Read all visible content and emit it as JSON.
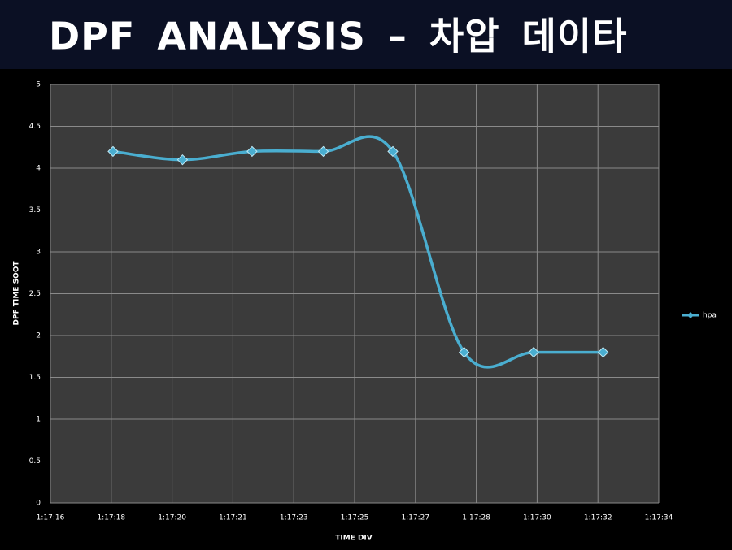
{
  "chart_data": {
    "type": "line",
    "title": "DPF ANALYSIS – 차압 데이타",
    "x_label": "TIME DIV",
    "y_label": "DPF TIME SOOT",
    "x": [
      17.8,
      19.8,
      21.8,
      23.85,
      25.85,
      27.9,
      29.9,
      31.9
    ],
    "series": [
      {
        "name": "hpa",
        "color": "#4aaed0",
        "values": [
          4.2,
          4.1,
          4.2,
          4.2,
          4.2,
          1.8,
          1.8,
          1.8
        ]
      }
    ],
    "xlim": [
      16,
      33.5
    ],
    "xticks": [
      {
        "value": 16,
        "label": "1:17:16"
      },
      {
        "value": 17.75,
        "label": "1:17:18"
      },
      {
        "value": 19.5,
        "label": "1:17:20"
      },
      {
        "value": 21.25,
        "label": "1:17:21"
      },
      {
        "value": 23,
        "label": "1:17:23"
      },
      {
        "value": 24.75,
        "label": "1:17:25"
      },
      {
        "value": 26.5,
        "label": "1:17:27"
      },
      {
        "value": 28.25,
        "label": "1:17:28"
      },
      {
        "value": 30,
        "label": "1:17:30"
      },
      {
        "value": 31.75,
        "label": "1:17:32"
      },
      {
        "value": 33.5,
        "label": "1:17:34"
      }
    ],
    "ylim": [
      0,
      5
    ],
    "yticks": [
      0,
      0.5,
      1,
      1.5,
      2,
      2.5,
      3,
      3.5,
      4,
      4.5,
      5
    ],
    "grid": true,
    "smooth": true,
    "legend": "right"
  }
}
